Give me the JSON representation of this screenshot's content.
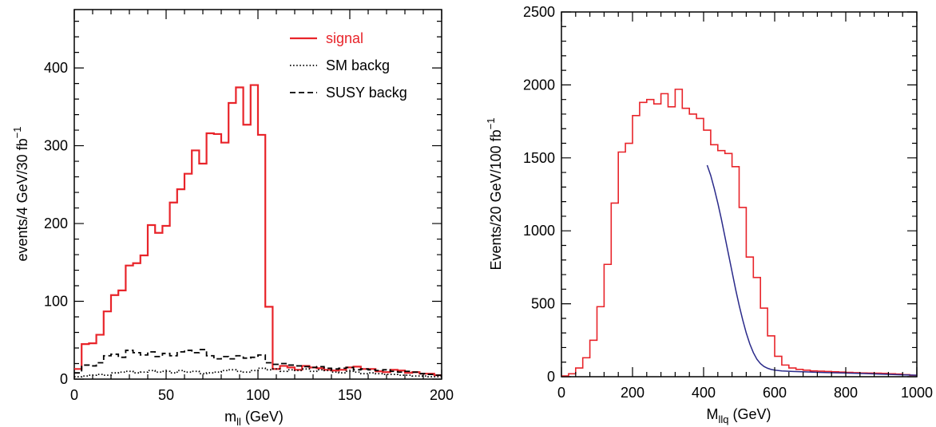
{
  "colors": {
    "signal": "#e8242a",
    "sm": "#000000",
    "susy": "#000000",
    "fit": "#2a2a8a",
    "frame": "#000000"
  },
  "chart_data": [
    {
      "type": "line",
      "step": true,
      "xlim": [
        0,
        200
      ],
      "ylim": [
        0,
        475
      ],
      "xticks": [
        0,
        50,
        100,
        150,
        200
      ],
      "yticks": [
        0,
        100,
        200,
        300,
        400
      ],
      "xlabel_main": "m",
      "xlabel_sub": "ll",
      "xlabel_unit": " (GeV)",
      "ylabel_main": "events/4 GeV/30 fb",
      "ylabel_sup": "−1",
      "legend_position": "top-right",
      "series": [
        {
          "name": "signal",
          "key": "signal",
          "style": "solid",
          "bin_width": 4,
          "x_start": 0,
          "values": [
            13,
            45,
            46,
            57,
            87,
            108,
            114,
            146,
            149,
            159,
            198,
            188,
            197,
            227,
            244,
            264,
            294,
            277,
            316,
            315,
            304,
            355,
            375,
            327,
            378,
            314,
            93,
            13,
            17,
            15,
            12,
            17,
            15,
            14,
            12,
            11,
            12,
            15,
            16,
            13,
            13,
            10,
            9,
            12,
            11,
            8,
            9,
            7,
            7,
            5
          ]
        },
        {
          "name": "SM backg",
          "key": "sm",
          "style": "dotted",
          "bin_width": 4,
          "x_start": 0,
          "values": [
            3,
            4,
            5,
            6,
            5,
            8,
            9,
            10,
            8,
            9,
            11,
            9,
            10,
            8,
            11,
            9,
            10,
            7,
            8,
            9,
            11,
            12,
            10,
            9,
            11,
            14,
            12,
            13,
            10,
            12,
            11,
            13,
            10,
            12,
            11,
            9,
            8,
            10,
            9,
            7,
            8,
            7,
            6,
            6,
            5,
            5,
            4,
            4,
            3,
            3
          ]
        },
        {
          "name": "SUSY backg",
          "key": "susy",
          "style": "dashed",
          "bin_width": 4,
          "x_start": 0,
          "values": [
            8,
            18,
            17,
            21,
            30,
            32,
            28,
            37,
            34,
            31,
            35,
            29,
            33,
            30,
            35,
            37,
            34,
            38,
            30,
            26,
            29,
            26,
            30,
            27,
            28,
            31,
            21,
            19,
            20,
            18,
            17,
            16,
            15,
            16,
            14,
            13,
            14,
            15,
            12,
            13,
            12,
            11,
            12,
            10,
            9,
            10,
            9,
            7,
            6,
            5
          ]
        }
      ]
    },
    {
      "type": "line",
      "step": true,
      "xlim": [
        0,
        1000
      ],
      "ylim": [
        0,
        2500
      ],
      "xticks": [
        0,
        200,
        400,
        600,
        800,
        1000
      ],
      "yticks": [
        0,
        500,
        1000,
        1500,
        2000,
        2500
      ],
      "xlabel_main": "M",
      "xlabel_sub": "llq",
      "xlabel_unit": " (GeV)",
      "ylabel_main": "Events/20 GeV/100 fb",
      "ylabel_sup": "−1",
      "series": [
        {
          "key": "signal",
          "style": "solid",
          "bin_width": 20,
          "x_start": 0,
          "values": [
            5,
            20,
            60,
            130,
            250,
            480,
            770,
            1190,
            1540,
            1600,
            1790,
            1880,
            1900,
            1870,
            1940,
            1850,
            1970,
            1840,
            1800,
            1770,
            1690,
            1590,
            1550,
            1530,
            1440,
            1160,
            820,
            680,
            470,
            280,
            140,
            80,
            60,
            50,
            45,
            40,
            38,
            36,
            34,
            32,
            30,
            28,
            26,
            25,
            24,
            23,
            20,
            18,
            14,
            10
          ]
        },
        {
          "key": "fit",
          "style": "fit-curve",
          "x": [
            410,
            420,
            430,
            440,
            450,
            460,
            470,
            480,
            490,
            500,
            510,
            520,
            530,
            540,
            550,
            560,
            570,
            580,
            590,
            600,
            620,
            650,
            700,
            750,
            800,
            850,
            900,
            950,
            1000
          ],
          "y": [
            1450,
            1380,
            1290,
            1190,
            1080,
            960,
            840,
            720,
            600,
            490,
            390,
            300,
            225,
            165,
            120,
            90,
            70,
            58,
            50,
            45,
            40,
            36,
            32,
            28,
            25,
            22,
            18,
            14,
            10
          ]
        }
      ]
    }
  ]
}
